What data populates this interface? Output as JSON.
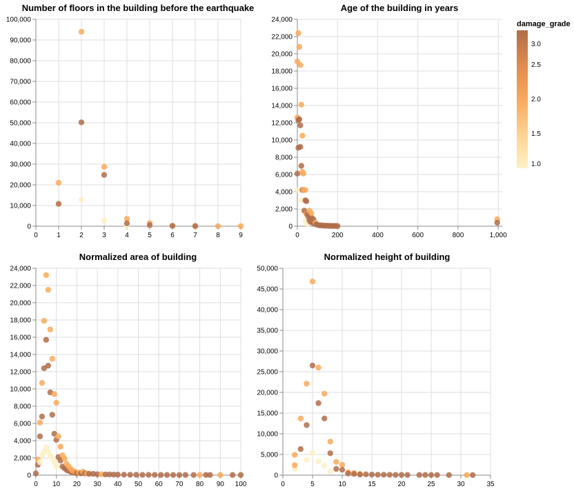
{
  "legend": {
    "title": "damage_grade",
    "ticks": [
      "3.0",
      "2.5",
      "2.0",
      "1.5",
      "1.0"
    ],
    "domain": [
      1,
      3
    ],
    "colors": [
      "#fef0c5",
      "#fdd392",
      "#f9a95b",
      "#e08a4d",
      "#b06d4a"
    ]
  },
  "chart_data": [
    {
      "type": "scatter",
      "title": "Number of floors in the building before the earthquake",
      "xlim": [
        0,
        9
      ],
      "ylim": [
        0,
        100000
      ],
      "xticks": [
        "0",
        "1",
        "2",
        "3",
        "4",
        "5",
        "6",
        "7",
        "8",
        "9"
      ],
      "yticks": [
        "0",
        "10,000",
        "20,000",
        "30,000",
        "40,000",
        "50,000",
        "60,000",
        "70,000",
        "80,000",
        "90,000",
        "100,000"
      ],
      "points": [
        {
          "x": 1,
          "y": 10500,
          "c": 1
        },
        {
          "x": 1,
          "y": 21000,
          "c": 2
        },
        {
          "x": 1,
          "y": 10800,
          "c": 3
        },
        {
          "x": 2,
          "y": 12800,
          "c": 1
        },
        {
          "x": 2,
          "y": 94000,
          "c": 2
        },
        {
          "x": 2,
          "y": 50200,
          "c": 3
        },
        {
          "x": 3,
          "y": 2700,
          "c": 1
        },
        {
          "x": 3,
          "y": 28700,
          "c": 2
        },
        {
          "x": 3,
          "y": 24800,
          "c": 3
        },
        {
          "x": 4,
          "y": 200,
          "c": 1
        },
        {
          "x": 4,
          "y": 3500,
          "c": 2
        },
        {
          "x": 4,
          "y": 1400,
          "c": 3
        },
        {
          "x": 5,
          "y": 50,
          "c": 1
        },
        {
          "x": 5,
          "y": 1500,
          "c": 2
        },
        {
          "x": 5,
          "y": 500,
          "c": 3
        },
        {
          "x": 6,
          "y": 150,
          "c": 2
        },
        {
          "x": 6,
          "y": 200,
          "c": 3
        },
        {
          "x": 7,
          "y": 80,
          "c": 2
        },
        {
          "x": 7,
          "y": 60,
          "c": 3
        },
        {
          "x": 8,
          "y": 30,
          "c": 2
        },
        {
          "x": 9,
          "y": 10,
          "c": 2
        }
      ]
    },
    {
      "type": "scatter",
      "title": "Age of the building in years",
      "xlim": [
        0,
        1020
      ],
      "ylim": [
        0,
        24000
      ],
      "xticks": [
        "0",
        "200",
        "400",
        "600",
        "800",
        "1,000"
      ],
      "xtickvals": [
        0,
        200,
        400,
        600,
        800,
        1000
      ],
      "yticks": [
        "0",
        "2,000",
        "4,000",
        "6,000",
        "8,000",
        "10,000",
        "12,000",
        "14,000",
        "16,000",
        "18,000",
        "20,000",
        "22,000",
        "24,000"
      ],
      "points": [
        {
          "x": 0,
          "y": 4200,
          "c": 1
        },
        {
          "x": 0,
          "y": 19100,
          "c": 2
        },
        {
          "x": 0,
          "y": 12600,
          "c": 2
        },
        {
          "x": 0,
          "y": 6100,
          "c": 3
        },
        {
          "x": 5,
          "y": 22400,
          "c": 2
        },
        {
          "x": 5,
          "y": 9100,
          "c": 3
        },
        {
          "x": 5,
          "y": 12300,
          "c": 3
        },
        {
          "x": 10,
          "y": 20800,
          "c": 2
        },
        {
          "x": 10,
          "y": 12400,
          "c": 3
        },
        {
          "x": 15,
          "y": 18700,
          "c": 2
        },
        {
          "x": 15,
          "y": 11700,
          "c": 3
        },
        {
          "x": 15,
          "y": 9200,
          "c": 3
        },
        {
          "x": 20,
          "y": 14100,
          "c": 2
        },
        {
          "x": 20,
          "y": 3000,
          "c": 1
        },
        {
          "x": 20,
          "y": 7000,
          "c": 3
        },
        {
          "x": 25,
          "y": 10500,
          "c": 2
        },
        {
          "x": 25,
          "y": 6300,
          "c": 2
        },
        {
          "x": 25,
          "y": 4200,
          "c": 3
        },
        {
          "x": 30,
          "y": 6100,
          "c": 2
        },
        {
          "x": 30,
          "y": 1800,
          "c": 1
        },
        {
          "x": 30,
          "y": 4200,
          "c": 2
        },
        {
          "x": 35,
          "y": 1800,
          "c": 3
        },
        {
          "x": 40,
          "y": 3000,
          "c": 3
        },
        {
          "x": 40,
          "y": 4200,
          "c": 2
        },
        {
          "x": 40,
          "y": 600,
          "c": 1
        },
        {
          "x": 45,
          "y": 2900,
          "c": 3
        },
        {
          "x": 45,
          "y": 1400,
          "c": 2
        },
        {
          "x": 50,
          "y": 1400,
          "c": 3
        },
        {
          "x": 50,
          "y": 200,
          "c": 1
        },
        {
          "x": 55,
          "y": 1100,
          "c": 3
        },
        {
          "x": 60,
          "y": 1800,
          "c": 2
        },
        {
          "x": 60,
          "y": 700,
          "c": 3
        },
        {
          "x": 65,
          "y": 500,
          "c": 3
        },
        {
          "x": 70,
          "y": 1000,
          "c": 3
        },
        {
          "x": 70,
          "y": 1500,
          "c": 2
        },
        {
          "x": 75,
          "y": 400,
          "c": 3
        },
        {
          "x": 80,
          "y": 800,
          "c": 3
        },
        {
          "x": 85,
          "y": 300,
          "c": 3
        },
        {
          "x": 90,
          "y": 400,
          "c": 2
        },
        {
          "x": 95,
          "y": 200,
          "c": 3
        },
        {
          "x": 100,
          "y": 150,
          "c": 3
        },
        {
          "x": 110,
          "y": 100,
          "c": 3
        },
        {
          "x": 120,
          "y": 100,
          "c": 3
        },
        {
          "x": 130,
          "y": 60,
          "c": 3
        },
        {
          "x": 140,
          "y": 60,
          "c": 3
        },
        {
          "x": 150,
          "y": 50,
          "c": 3
        },
        {
          "x": 160,
          "y": 40,
          "c": 3
        },
        {
          "x": 170,
          "y": 30,
          "c": 3
        },
        {
          "x": 180,
          "y": 30,
          "c": 3
        },
        {
          "x": 190,
          "y": 30,
          "c": 3
        },
        {
          "x": 200,
          "y": 20,
          "c": 3
        },
        {
          "x": 995,
          "y": 800,
          "c": 2
        },
        {
          "x": 995,
          "y": 400,
          "c": 3
        }
      ]
    },
    {
      "type": "scatter",
      "title": "Normalized area of building",
      "xlim": [
        0,
        100
      ],
      "ylim": [
        0,
        24000
      ],
      "xticks": [
        "0",
        "10",
        "20",
        "30",
        "40",
        "50",
        "60",
        "70",
        "80",
        "90",
        "100"
      ],
      "yticks": [
        "0",
        "2,000",
        "4,000",
        "6,000",
        "8,000",
        "10,000",
        "12,000",
        "14,000",
        "16,000",
        "18,000",
        "20,000",
        "22,000",
        "24,000"
      ],
      "points": [
        {
          "x": 0,
          "y": 200,
          "c": 3
        },
        {
          "x": 1,
          "y": 1200,
          "c": 3
        },
        {
          "x": 1,
          "y": 1800,
          "c": 2
        },
        {
          "x": 2,
          "y": 4500,
          "c": 3
        },
        {
          "x": 2,
          "y": 6100,
          "c": 2
        },
        {
          "x": 2,
          "y": 1500,
          "c": 1
        },
        {
          "x": 3,
          "y": 6800,
          "c": 3
        },
        {
          "x": 3,
          "y": 10700,
          "c": 2
        },
        {
          "x": 3,
          "y": 2300,
          "c": 1
        },
        {
          "x": 4,
          "y": 12400,
          "c": 3
        },
        {
          "x": 4,
          "y": 17900,
          "c": 2
        },
        {
          "x": 4,
          "y": 2700,
          "c": 1
        },
        {
          "x": 5,
          "y": 15700,
          "c": 3
        },
        {
          "x": 5,
          "y": 23200,
          "c": 2
        },
        {
          "x": 5,
          "y": 3200,
          "c": 1
        },
        {
          "x": 6,
          "y": 12700,
          "c": 3
        },
        {
          "x": 6,
          "y": 21500,
          "c": 2
        },
        {
          "x": 6,
          "y": 2700,
          "c": 1
        },
        {
          "x": 7,
          "y": 9600,
          "c": 3
        },
        {
          "x": 7,
          "y": 16900,
          "c": 2
        },
        {
          "x": 7,
          "y": 2300,
          "c": 1
        },
        {
          "x": 8,
          "y": 7000,
          "c": 3
        },
        {
          "x": 8,
          "y": 13500,
          "c": 2
        },
        {
          "x": 8,
          "y": 1900,
          "c": 1
        },
        {
          "x": 9,
          "y": 4800,
          "c": 3
        },
        {
          "x": 9,
          "y": 9400,
          "c": 2
        },
        {
          "x": 9,
          "y": 1500,
          "c": 1
        },
        {
          "x": 10,
          "y": 4100,
          "c": 3
        },
        {
          "x": 10,
          "y": 8400,
          "c": 2
        },
        {
          "x": 10,
          "y": 1000,
          "c": 1
        },
        {
          "x": 11,
          "y": 2100,
          "c": 3
        },
        {
          "x": 11,
          "y": 4500,
          "c": 2
        },
        {
          "x": 12,
          "y": 1700,
          "c": 3
        },
        {
          "x": 12,
          "y": 3300,
          "c": 2
        },
        {
          "x": 13,
          "y": 1000,
          "c": 3
        },
        {
          "x": 13,
          "y": 2300,
          "c": 2
        },
        {
          "x": 14,
          "y": 800,
          "c": 3
        },
        {
          "x": 14,
          "y": 1900,
          "c": 2
        },
        {
          "x": 15,
          "y": 600,
          "c": 3
        },
        {
          "x": 15,
          "y": 1300,
          "c": 2
        },
        {
          "x": 16,
          "y": 500,
          "c": 3
        },
        {
          "x": 16,
          "y": 1000,
          "c": 2
        },
        {
          "x": 17,
          "y": 400,
          "c": 3
        },
        {
          "x": 17,
          "y": 700,
          "c": 2
        },
        {
          "x": 18,
          "y": 300,
          "c": 3
        },
        {
          "x": 18,
          "y": 500,
          "c": 2
        },
        {
          "x": 19,
          "y": 300,
          "c": 3
        },
        {
          "x": 19,
          "y": 400,
          "c": 2
        },
        {
          "x": 20,
          "y": 200,
          "c": 3
        },
        {
          "x": 21,
          "y": 300,
          "c": 2
        },
        {
          "x": 22,
          "y": 200,
          "c": 3
        },
        {
          "x": 23,
          "y": 400,
          "c": 2
        },
        {
          "x": 24,
          "y": 200,
          "c": 3
        },
        {
          "x": 25,
          "y": 200,
          "c": 2
        },
        {
          "x": 26,
          "y": 150,
          "c": 3
        },
        {
          "x": 28,
          "y": 150,
          "c": 3
        },
        {
          "x": 30,
          "y": 100,
          "c": 3
        },
        {
          "x": 32,
          "y": 100,
          "c": 2
        },
        {
          "x": 34,
          "y": 80,
          "c": 3
        },
        {
          "x": 36,
          "y": 80,
          "c": 3
        },
        {
          "x": 38,
          "y": 60,
          "c": 3
        },
        {
          "x": 40,
          "y": 60,
          "c": 3
        },
        {
          "x": 43,
          "y": 50,
          "c": 3
        },
        {
          "x": 46,
          "y": 40,
          "c": 3
        },
        {
          "x": 49,
          "y": 40,
          "c": 3
        },
        {
          "x": 52,
          "y": 30,
          "c": 3
        },
        {
          "x": 55,
          "y": 30,
          "c": 3
        },
        {
          "x": 58,
          "y": 30,
          "c": 3
        },
        {
          "x": 61,
          "y": 20,
          "c": 3
        },
        {
          "x": 64,
          "y": 20,
          "c": 3
        },
        {
          "x": 67,
          "y": 20,
          "c": 3
        },
        {
          "x": 70,
          "y": 20,
          "c": 3
        },
        {
          "x": 73,
          "y": 20,
          "c": 3
        },
        {
          "x": 77,
          "y": 20,
          "c": 3
        },
        {
          "x": 80,
          "y": 20,
          "c": 2
        },
        {
          "x": 83,
          "y": 20,
          "c": 3
        },
        {
          "x": 85,
          "y": 20,
          "c": 3
        },
        {
          "x": 90,
          "y": 20,
          "c": 2
        },
        {
          "x": 96,
          "y": 20,
          "c": 3
        },
        {
          "x": 100,
          "y": 20,
          "c": 3
        }
      ]
    },
    {
      "type": "scatter",
      "title": "Normalized height of building",
      "xlim": [
        0,
        35
      ],
      "ylim": [
        0,
        50000
      ],
      "xticks": [
        "0",
        "5",
        "10",
        "15",
        "20",
        "25",
        "30",
        "35"
      ],
      "yticks": [
        "0",
        "5,000",
        "10,000",
        "15,000",
        "20,000",
        "25,000",
        "30,000",
        "35,000",
        "40,000",
        "45,000",
        "50,000"
      ],
      "points": [
        {
          "x": 2,
          "y": 1500,
          "c": 1
        },
        {
          "x": 2,
          "y": 4900,
          "c": 2
        },
        {
          "x": 2,
          "y": 2400,
          "c": 2
        },
        {
          "x": 3,
          "y": 13700,
          "c": 2
        },
        {
          "x": 3,
          "y": 6300,
          "c": 3
        },
        {
          "x": 4,
          "y": 22100,
          "c": 2
        },
        {
          "x": 4,
          "y": 12100,
          "c": 3
        },
        {
          "x": 4,
          "y": 3700,
          "c": 1
        },
        {
          "x": 5,
          "y": 46800,
          "c": 2
        },
        {
          "x": 5,
          "y": 26500,
          "c": 3
        },
        {
          "x": 5,
          "y": 5300,
          "c": 1
        },
        {
          "x": 6,
          "y": 26000,
          "c": 2
        },
        {
          "x": 6,
          "y": 17400,
          "c": 3
        },
        {
          "x": 6,
          "y": 3300,
          "c": 1
        },
        {
          "x": 7,
          "y": 19700,
          "c": 2
        },
        {
          "x": 7,
          "y": 13700,
          "c": 3
        },
        {
          "x": 7,
          "y": 2300,
          "c": 1
        },
        {
          "x": 8,
          "y": 8100,
          "c": 2
        },
        {
          "x": 8,
          "y": 5300,
          "c": 3
        },
        {
          "x": 8,
          "y": 900,
          "c": 1
        },
        {
          "x": 9,
          "y": 3200,
          "c": 2
        },
        {
          "x": 9,
          "y": 1500,
          "c": 3
        },
        {
          "x": 10,
          "y": 2500,
          "c": 2
        },
        {
          "x": 10,
          "y": 1300,
          "c": 3
        },
        {
          "x": 11,
          "y": 700,
          "c": 2
        },
        {
          "x": 11,
          "y": 400,
          "c": 3
        },
        {
          "x": 12,
          "y": 500,
          "c": 2
        },
        {
          "x": 12,
          "y": 300,
          "c": 3
        },
        {
          "x": 13,
          "y": 300,
          "c": 2
        },
        {
          "x": 13,
          "y": 150,
          "c": 3
        },
        {
          "x": 14,
          "y": 200,
          "c": 3
        },
        {
          "x": 15,
          "y": 150,
          "c": 3
        },
        {
          "x": 16,
          "y": 100,
          "c": 3
        },
        {
          "x": 17,
          "y": 100,
          "c": 3
        },
        {
          "x": 18,
          "y": 80,
          "c": 3
        },
        {
          "x": 19,
          "y": 60,
          "c": 3
        },
        {
          "x": 20,
          "y": 60,
          "c": 3
        },
        {
          "x": 21,
          "y": 50,
          "c": 3
        },
        {
          "x": 23,
          "y": 40,
          "c": 3
        },
        {
          "x": 24,
          "y": 40,
          "c": 3
        },
        {
          "x": 25,
          "y": 30,
          "c": 3
        },
        {
          "x": 26,
          "y": 30,
          "c": 3
        },
        {
          "x": 28,
          "y": 20,
          "c": 3
        },
        {
          "x": 31,
          "y": 20,
          "c": 2
        },
        {
          "x": 32,
          "y": 20,
          "c": 3
        }
      ]
    }
  ]
}
